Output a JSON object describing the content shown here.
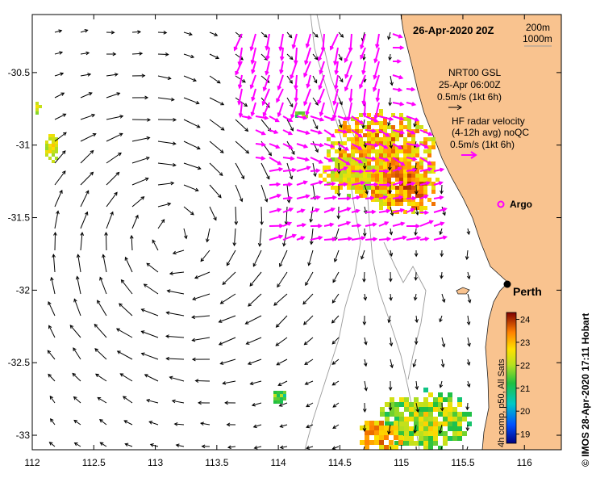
{
  "map": {
    "date_label": "26-Apr-2020 20Z",
    "depth_labels": [
      "200m",
      "1000m"
    ],
    "x_ticks": [
      "112",
      "112.5",
      "113",
      "113.5",
      "114",
      "114.5",
      "115",
      "115.5",
      "116"
    ],
    "y_ticks": [
      "-30.5",
      "-31",
      "-31.5",
      "-32",
      "-32.5",
      "-33"
    ],
    "x_tick_values": [
      112,
      112.5,
      113,
      113.5,
      114,
      114.5,
      115,
      115.5,
      116
    ],
    "y_tick_values": [
      -30.5,
      -31,
      -31.5,
      -32,
      -32.5,
      -33
    ],
    "xlim": [
      112,
      116.3
    ],
    "ylim": [
      -33.1,
      -30.1
    ],
    "legend": {
      "gsl_title": "NRT00 GSL",
      "gsl_time": "25-Apr 06:00Z",
      "gsl_scale": "0.5m/s (1kt 6h)",
      "hf_title": "HF radar velocity",
      "hf_sub": "(4-12h avg) noQC",
      "hf_scale": "0.5m/s (1kt 6h)",
      "argo_label": "Argo"
    },
    "city_label": "Perth",
    "colorbar": {
      "ticks": [
        "24",
        "23",
        "22",
        "21",
        "20",
        "19"
      ],
      "tick_values": [
        24,
        23,
        22,
        21,
        20,
        19
      ],
      "range": [
        18.6,
        24.3
      ],
      "label": "4h comp, p50, All Sats"
    },
    "credit": "© IMOS 28-Apr-2020 17:11 Hobart",
    "colors": {
      "land": "#f9c38f",
      "gsl_arrow": "#000000",
      "hf_arrow": "#ff00ff",
      "argo": "#ff00ff",
      "bathy": "#999999"
    }
  }
}
